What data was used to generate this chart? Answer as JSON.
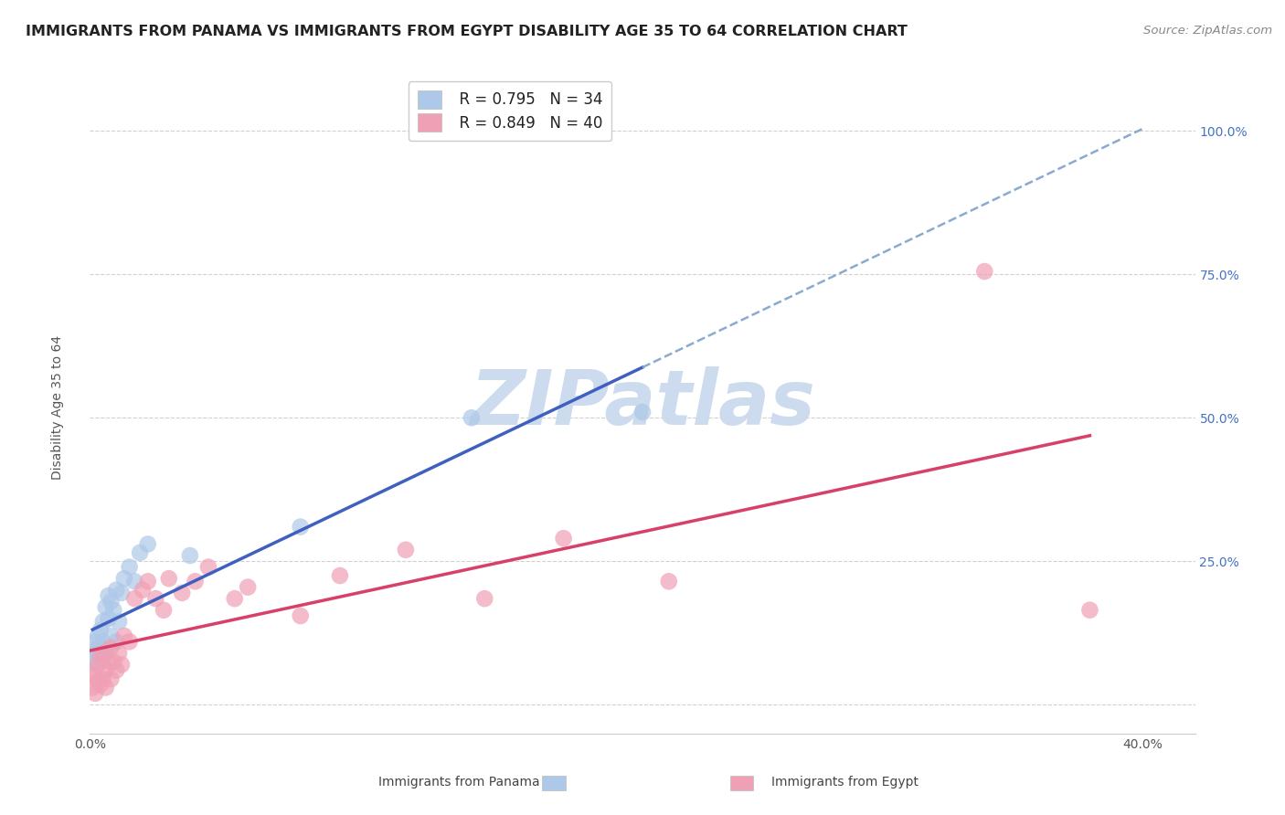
{
  "title": "IMMIGRANTS FROM PANAMA VS IMMIGRANTS FROM EGYPT DISABILITY AGE 35 TO 64 CORRELATION CHART",
  "source": "Source: ZipAtlas.com",
  "ylabel": "Disability Age 35 to 64",
  "xlim": [
    0.0,
    0.42
  ],
  "ylim": [
    -0.05,
    1.1
  ],
  "xtick_positions": [
    0.0,
    0.05,
    0.1,
    0.15,
    0.2,
    0.25,
    0.3,
    0.35,
    0.4
  ],
  "ytick_positions": [
    0.0,
    0.25,
    0.5,
    0.75,
    1.0
  ],
  "panama_color": "#adc8e8",
  "panama_line_color": "#4060c0",
  "panama_dash_color": "#8aaad0",
  "egypt_color": "#f0a0b4",
  "egypt_line_color": "#d84068",
  "bg_color": "#ffffff",
  "watermark": "ZIPatlas",
  "watermark_color": "#ccdcee",
  "grid_color": "#cccccc",
  "title_color": "#222222",
  "ytick_color": "#4472c4",
  "xtick_color": "#555555",
  "ylabel_color": "#555555",
  "source_color": "#888888",
  "panama_x": [
    0.001,
    0.001,
    0.002,
    0.002,
    0.003,
    0.003,
    0.003,
    0.004,
    0.004,
    0.004,
    0.005,
    0.005,
    0.005,
    0.005,
    0.006,
    0.006,
    0.007,
    0.007,
    0.008,
    0.008,
    0.009,
    0.01,
    0.01,
    0.011,
    0.012,
    0.013,
    0.015,
    0.017,
    0.019,
    0.022,
    0.038,
    0.08,
    0.145,
    0.21
  ],
  "panama_y": [
    0.075,
    0.095,
    0.085,
    0.11,
    0.075,
    0.095,
    0.12,
    0.075,
    0.1,
    0.13,
    0.08,
    0.095,
    0.11,
    0.145,
    0.095,
    0.17,
    0.15,
    0.19,
    0.12,
    0.18,
    0.165,
    0.11,
    0.2,
    0.145,
    0.195,
    0.22,
    0.24,
    0.215,
    0.265,
    0.28,
    0.26,
    0.31,
    0.5,
    0.51
  ],
  "egypt_x": [
    0.001,
    0.001,
    0.002,
    0.002,
    0.003,
    0.003,
    0.004,
    0.004,
    0.005,
    0.005,
    0.006,
    0.006,
    0.007,
    0.008,
    0.008,
    0.009,
    0.01,
    0.011,
    0.012,
    0.013,
    0.015,
    0.017,
    0.02,
    0.022,
    0.025,
    0.028,
    0.03,
    0.035,
    0.04,
    0.045,
    0.055,
    0.06,
    0.08,
    0.095,
    0.12,
    0.15,
    0.18,
    0.22,
    0.34,
    0.38
  ],
  "egypt_y": [
    0.03,
    0.055,
    0.02,
    0.05,
    0.04,
    0.07,
    0.035,
    0.085,
    0.045,
    0.09,
    0.03,
    0.06,
    0.075,
    0.045,
    0.1,
    0.075,
    0.06,
    0.09,
    0.07,
    0.12,
    0.11,
    0.185,
    0.2,
    0.215,
    0.185,
    0.165,
    0.22,
    0.195,
    0.215,
    0.24,
    0.185,
    0.205,
    0.155,
    0.225,
    0.27,
    0.185,
    0.29,
    0.215,
    0.755,
    0.165
  ],
  "title_fontsize": 11.5,
  "axis_label_fontsize": 10,
  "tick_fontsize": 10,
  "legend_fontsize": 12,
  "scatter_size": 180
}
